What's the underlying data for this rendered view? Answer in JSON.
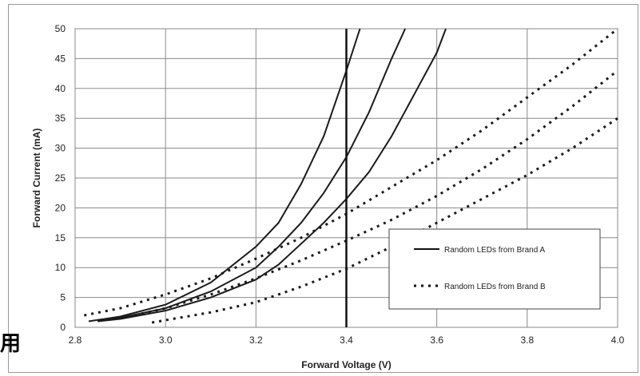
{
  "chart_data": {
    "type": "line",
    "xlabel": "Forward Voltage (V)",
    "ylabel": "Forward Current (mA)",
    "xlim": [
      2.8,
      4.0
    ],
    "ylim": [
      0,
      50
    ],
    "x_ticks": [
      "2.8",
      "3.0",
      "3.2",
      "3.4",
      "3.6",
      "3.8",
      "4.0"
    ],
    "y_ticks": [
      "0",
      "5",
      "10",
      "15",
      "20",
      "25",
      "30",
      "35",
      "40",
      "45",
      "50"
    ],
    "grid": true,
    "legend_position": "lower-right",
    "reference_line_x": 3.4,
    "legend": [
      {
        "label": "Random LEDs from Brand A",
        "style": "solid"
      },
      {
        "label": "Random LEDs from Brand B",
        "style": "dotted"
      }
    ],
    "series": [
      {
        "group": "Random LEDs from Brand A",
        "style": "solid",
        "points": [
          [
            2.83,
            1.0
          ],
          [
            2.9,
            1.8
          ],
          [
            3.0,
            3.8
          ],
          [
            3.1,
            7.5
          ],
          [
            3.2,
            13.5
          ],
          [
            3.25,
            17.5
          ],
          [
            3.3,
            24.0
          ],
          [
            3.35,
            32.0
          ],
          [
            3.4,
            43.0
          ],
          [
            3.43,
            50.0
          ]
        ]
      },
      {
        "group": "Random LEDs from Brand A",
        "style": "solid",
        "points": [
          [
            2.85,
            1.0
          ],
          [
            2.9,
            1.6
          ],
          [
            3.0,
            3.2
          ],
          [
            3.1,
            6.0
          ],
          [
            3.2,
            10.0
          ],
          [
            3.25,
            13.5
          ],
          [
            3.3,
            17.5
          ],
          [
            3.35,
            22.5
          ],
          [
            3.4,
            28.5
          ],
          [
            3.45,
            36.0
          ],
          [
            3.5,
            45.0
          ],
          [
            3.53,
            50.0
          ]
        ]
      },
      {
        "group": "Random LEDs from Brand A",
        "style": "solid",
        "points": [
          [
            2.85,
            1.0
          ],
          [
            2.9,
            1.4
          ],
          [
            3.0,
            2.8
          ],
          [
            3.1,
            5.0
          ],
          [
            3.2,
            8.0
          ],
          [
            3.25,
            10.5
          ],
          [
            3.3,
            14.0
          ],
          [
            3.35,
            17.5
          ],
          [
            3.4,
            21.5
          ],
          [
            3.45,
            26.0
          ],
          [
            3.5,
            32.0
          ],
          [
            3.55,
            39.0
          ],
          [
            3.6,
            46.0
          ],
          [
            3.62,
            50.0
          ]
        ]
      },
      {
        "group": "Random LEDs from Brand B",
        "style": "dotted",
        "points": [
          [
            2.82,
            2.0
          ],
          [
            2.9,
            3.2
          ],
          [
            3.0,
            5.5
          ],
          [
            3.1,
            8.2
          ],
          [
            3.2,
            11.5
          ],
          [
            3.3,
            15.0
          ],
          [
            3.4,
            19.0
          ],
          [
            3.5,
            23.5
          ],
          [
            3.6,
            28.0
          ],
          [
            3.7,
            33.0
          ],
          [
            3.8,
            38.5
          ],
          [
            3.9,
            44.0
          ],
          [
            4.0,
            50.0
          ]
        ]
      },
      {
        "group": "Random LEDs from Brand B",
        "style": "dotted",
        "points": [
          [
            2.9,
            1.5
          ],
          [
            3.0,
            3.2
          ],
          [
            3.1,
            5.5
          ],
          [
            3.2,
            8.2
          ],
          [
            3.3,
            11.2
          ],
          [
            3.4,
            14.5
          ],
          [
            3.5,
            18.0
          ],
          [
            3.6,
            22.0
          ],
          [
            3.7,
            26.5
          ],
          [
            3.8,
            31.5
          ],
          [
            3.9,
            37.0
          ],
          [
            4.0,
            43.0
          ]
        ]
      },
      {
        "group": "Random LEDs from Brand B",
        "style": "dotted",
        "points": [
          [
            2.97,
            0.8
          ],
          [
            3.1,
            2.5
          ],
          [
            3.2,
            4.2
          ],
          [
            3.3,
            6.8
          ],
          [
            3.4,
            9.8
          ],
          [
            3.5,
            13.5
          ],
          [
            3.6,
            17.5
          ],
          [
            3.7,
            21.5
          ],
          [
            3.8,
            25.5
          ],
          [
            3.9,
            30.0
          ],
          [
            4.0,
            35.0
          ]
        ]
      }
    ]
  },
  "corner_text": "用"
}
